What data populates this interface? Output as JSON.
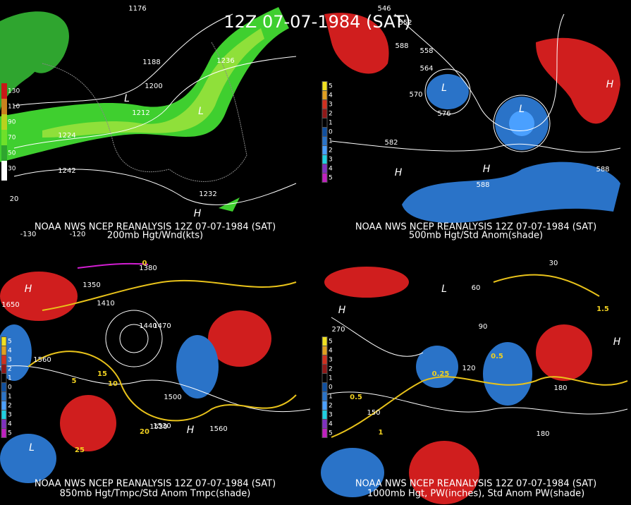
{
  "title": "12Z 07-07-1984 (SAT)",
  "panels": [
    {
      "source": "NOAA NWS NCEP REANALYSIS 12Z 07-07-1984 (SAT)",
      "field": "200mb Hgt/Wnd(kts)",
      "colorbar": [
        "130",
        "110",
        "90",
        "70",
        "50",
        "30"
      ],
      "labels": [
        "1176",
        "1188",
        "1200",
        "1212",
        "1224",
        "1236",
        "1242",
        "1232",
        "H",
        "L",
        "L",
        "-130",
        "-120",
        "20"
      ]
    },
    {
      "source": "NOAA NWS NCEP REANALYSIS 12Z 07-07-1984 (SAT)",
      "field": "500mb Hgt/Std Anom(shade)",
      "colorbar": [
        "5",
        "4",
        "3",
        "2",
        "1",
        "0",
        "1",
        "2",
        "3",
        "4",
        "5"
      ],
      "labels": [
        "546",
        "552",
        "558",
        "564",
        "570",
        "576",
        "582",
        "588",
        "588",
        "588",
        "H",
        "H",
        "L",
        "L",
        "H"
      ]
    },
    {
      "source": "NOAA NWS NCEP REANALYSIS 12Z 07-07-1984 (SAT)",
      "field": "850mb Hgt/Tmpc/Std Anom Tmpc(shade)",
      "colorbar": [
        "5",
        "4",
        "3",
        "2",
        "1",
        "0",
        "1",
        "2",
        "3",
        "4",
        "5"
      ],
      "labels": [
        "1380",
        "1350",
        "1410",
        "1440",
        "1470",
        "1500",
        "1530",
        "1560",
        "1650",
        "1530",
        "1560",
        "0",
        "5",
        "10",
        "15",
        "20",
        "25",
        "H",
        "L",
        "H"
      ]
    },
    {
      "source": "NOAA NWS NCEP REANALYSIS 12Z 07-07-1984 (SAT)",
      "field": "1000mb Hgt, PW(inches), Std Anom PW(shade)",
      "colorbar": [
        "5",
        "4",
        "3",
        "2",
        "1",
        "0",
        "1",
        "2",
        "3",
        "4",
        "5"
      ],
      "labels": [
        "30",
        "60",
        "90",
        "120",
        "150",
        "180",
        "270",
        "180",
        "0.25",
        "0.5",
        "1",
        "1.5",
        "0.5",
        "H",
        "L",
        "H"
      ]
    }
  ]
}
